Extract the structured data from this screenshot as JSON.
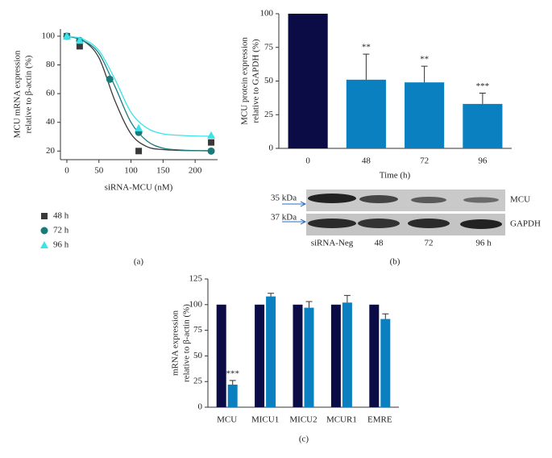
{
  "chart_data": [
    {
      "type": "scatter",
      "panel_label": "(a)",
      "x_label": "siRNA-MCU (nM)",
      "y_label": [
        "MCU mRNA expression",
        "relative to β-actin (%)"
      ],
      "x": [
        0,
        20,
        67,
        112,
        225
      ],
      "xlim": [
        -10,
        235
      ],
      "xticks": [
        0,
        50,
        100,
        150,
        200
      ],
      "ylim": [
        14,
        105
      ],
      "yticks": [
        20,
        40,
        60,
        80,
        100
      ],
      "curve_x": [
        0,
        25,
        50,
        75,
        100,
        125,
        150,
        175,
        200,
        225
      ],
      "series": [
        {
          "name": "48 h",
          "color": "#3a3a3a",
          "marker": "square",
          "values": [
            100,
            93,
            null,
            20,
            26
          ],
          "curve": [
            100,
            97,
            85,
            55,
            32,
            23,
            21,
            20.5,
            20.3,
            20.2
          ]
        },
        {
          "name": "72 h",
          "color": "#197a7a",
          "marker": "circle",
          "values": [
            100,
            97,
            70,
            33,
            20
          ],
          "curve": [
            100,
            97,
            88,
            65,
            40,
            27,
            22,
            20.8,
            20.3,
            20.1
          ]
        },
        {
          "name": "96 h",
          "color": "#3de3ea",
          "marker": "triangle",
          "values": [
            100,
            97,
            null,
            36,
            31
          ],
          "curve": [
            100,
            98,
            90,
            70,
            47,
            36,
            32,
            31,
            30.5,
            30.3
          ]
        }
      ]
    },
    {
      "type": "bar",
      "panel_label": "(b)",
      "x_label": "Time (h)",
      "y_label": [
        "MCU protein expression",
        "relative to GAPDH (%)"
      ],
      "categories": [
        "0",
        "48",
        "72",
        "96"
      ],
      "values": [
        100,
        51,
        49,
        33
      ],
      "errors": [
        0,
        19,
        12,
        8
      ],
      "colors": [
        "#0b0b45",
        "#0a80c0",
        "#0a80c0",
        "#0a80c0"
      ],
      "significance": [
        null,
        "**",
        "**",
        "***"
      ],
      "ylim": [
        0,
        100
      ],
      "yticks": [
        0,
        25,
        50,
        75,
        100
      ],
      "blot": {
        "markers": [
          "35 kDa",
          "37 kDa"
        ],
        "proteins": [
          "MCU",
          "GAPDH"
        ],
        "lanes": [
          "siRNA-Neg",
          "48",
          "72",
          "96 h"
        ]
      }
    },
    {
      "type": "grouped_bar",
      "panel_label": "(c)",
      "y_label": [
        "mRNA expression",
        "relative to β-actin (%)"
      ],
      "categories": [
        "MCU",
        "MICU1",
        "MICU2",
        "MCUR1",
        "EMRE"
      ],
      "series": [
        {
          "color": "#0b0b45",
          "values": [
            100,
            100,
            100,
            100,
            100
          ]
        },
        {
          "color": "#0a80c0",
          "values": [
            22,
            108,
            97,
            102,
            86
          ],
          "errors": [
            4,
            3,
            6,
            7,
            5
          ],
          "significance": [
            "***",
            null,
            null,
            null,
            null
          ]
        }
      ],
      "ylim": [
        0,
        125
      ],
      "yticks": [
        0,
        25,
        50,
        75,
        100,
        125
      ]
    }
  ]
}
